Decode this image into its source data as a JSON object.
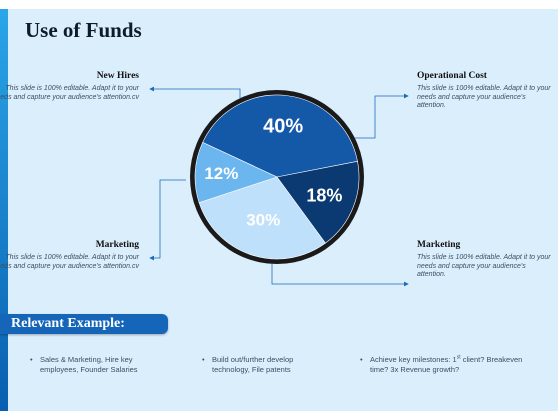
{
  "slide": {
    "title": "Use of Funds",
    "callouts": [
      {
        "heading": "New Hires",
        "text": "This slide is 100% editable. Adapt it to your needs and capture your audience's attention.cv"
      },
      {
        "heading": "Operational Cost",
        "text": "This slide is 100% editable. Adapt it to your needs and capture your audience's attention."
      },
      {
        "heading": "Marketing",
        "text": "This slide is 100% editable. Adapt it to your needs and capture your audience's attention.cv"
      },
      {
        "heading": "Marketing",
        "text": "This slide is 100% editable. Adapt it to your needs and capture your audience's attention."
      }
    ],
    "example_heading": "Relevant Example:",
    "bullets": [
      "Sales & Marketing, Hire key employees, Founder Salaries",
      "Build out/further develop technology, File patents",
      {
        "before": "Achieve key milestones: 1",
        "sup": "st",
        "after": " client? Breakeven time? 3x Revenue growth?"
      }
    ]
  },
  "chart_data": {
    "type": "pie",
    "slices": [
      {
        "label": "40%",
        "value": 40,
        "color": "#1458a8"
      },
      {
        "label": "18%",
        "value": 18,
        "color": "#0b3a72"
      },
      {
        "label": "30%",
        "value": 30,
        "color": "#bfe0fb"
      },
      {
        "label": "12%",
        "value": 12,
        "color": "#6cb6ef"
      }
    ],
    "colors": {
      "rim": "#1a1a1a",
      "accent_bar": "#1565b8",
      "connector": "#1e6bb8"
    }
  }
}
